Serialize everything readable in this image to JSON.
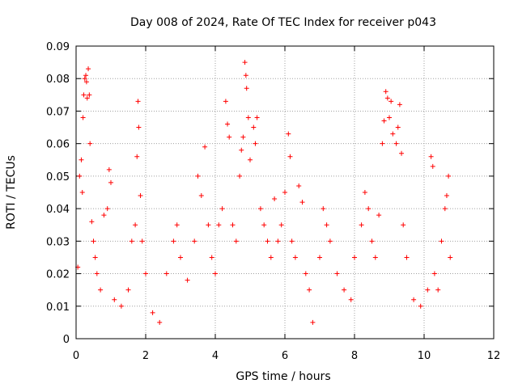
{
  "chart_data": {
    "type": "scatter",
    "title": "Day 008 of 2024, Rate Of TEC Index for receiver p043",
    "xlabel": "GPS time / hours",
    "ylabel": "ROTI / TECUs",
    "xlim": [
      0,
      12
    ],
    "ylim": [
      0,
      0.09
    ],
    "x_ticks": [
      "0",
      "2",
      "4",
      "6",
      "8",
      "10",
      "12"
    ],
    "y_ticks": [
      "0",
      "0.01",
      "0.02",
      "0.03",
      "0.04",
      "0.05",
      "0.06",
      "0.07",
      "0.08",
      "0.09"
    ],
    "grid": true,
    "marker": "+",
    "color": "#ff0000",
    "series": [
      {
        "name": "ROTI",
        "points": [
          [
            0.05,
            0.022
          ],
          [
            0.1,
            0.05
          ],
          [
            0.15,
            0.055
          ],
          [
            0.18,
            0.045
          ],
          [
            0.2,
            0.068
          ],
          [
            0.22,
            0.075
          ],
          [
            0.25,
            0.08
          ],
          [
            0.28,
            0.081
          ],
          [
            0.3,
            0.079
          ],
          [
            0.32,
            0.074
          ],
          [
            0.35,
            0.083
          ],
          [
            0.38,
            0.075
          ],
          [
            0.4,
            0.06
          ],
          [
            0.45,
            0.036
          ],
          [
            0.5,
            0.03
          ],
          [
            0.55,
            0.025
          ],
          [
            0.6,
            0.02
          ],
          [
            0.7,
            0.015
          ],
          [
            0.8,
            0.038
          ],
          [
            0.9,
            0.04
          ],
          [
            0.95,
            0.052
          ],
          [
            1.0,
            0.048
          ],
          [
            1.1,
            0.012
          ],
          [
            1.3,
            0.01
          ],
          [
            1.5,
            0.015
          ],
          [
            1.6,
            0.03
          ],
          [
            1.7,
            0.035
          ],
          [
            1.75,
            0.056
          ],
          [
            1.78,
            0.073
          ],
          [
            1.8,
            0.065
          ],
          [
            1.85,
            0.044
          ],
          [
            1.9,
            0.03
          ],
          [
            2.0,
            0.02
          ],
          [
            2.2,
            0.008
          ],
          [
            2.4,
            0.005
          ],
          [
            2.6,
            0.02
          ],
          [
            2.8,
            0.03
          ],
          [
            2.9,
            0.035
          ],
          [
            3.0,
            0.025
          ],
          [
            3.2,
            0.018
          ],
          [
            3.4,
            0.03
          ],
          [
            3.5,
            0.05
          ],
          [
            3.6,
            0.044
          ],
          [
            3.7,
            0.059
          ],
          [
            3.8,
            0.035
          ],
          [
            3.9,
            0.025
          ],
          [
            4.0,
            0.02
          ],
          [
            4.1,
            0.035
          ],
          [
            4.2,
            0.04
          ],
          [
            4.3,
            0.073
          ],
          [
            4.35,
            0.066
          ],
          [
            4.4,
            0.062
          ],
          [
            4.5,
            0.035
          ],
          [
            4.6,
            0.03
          ],
          [
            4.7,
            0.05
          ],
          [
            4.75,
            0.058
          ],
          [
            4.8,
            0.062
          ],
          [
            4.85,
            0.085
          ],
          [
            4.88,
            0.081
          ],
          [
            4.9,
            0.077
          ],
          [
            4.95,
            0.068
          ],
          [
            5.0,
            0.055
          ],
          [
            5.1,
            0.065
          ],
          [
            5.15,
            0.06
          ],
          [
            5.2,
            0.068
          ],
          [
            5.3,
            0.04
          ],
          [
            5.4,
            0.035
          ],
          [
            5.5,
            0.03
          ],
          [
            5.6,
            0.025
          ],
          [
            5.7,
            0.043
          ],
          [
            5.8,
            0.03
          ],
          [
            5.9,
            0.035
          ],
          [
            6.0,
            0.045
          ],
          [
            6.1,
            0.063
          ],
          [
            6.15,
            0.056
          ],
          [
            6.2,
            0.03
          ],
          [
            6.3,
            0.025
          ],
          [
            6.4,
            0.047
          ],
          [
            6.5,
            0.042
          ],
          [
            6.6,
            0.02
          ],
          [
            6.7,
            0.015
          ],
          [
            6.8,
            0.005
          ],
          [
            7.0,
            0.025
          ],
          [
            7.1,
            0.04
          ],
          [
            7.2,
            0.035
          ],
          [
            7.3,
            0.03
          ],
          [
            7.5,
            0.02
          ],
          [
            7.7,
            0.015
          ],
          [
            7.9,
            0.012
          ],
          [
            8.0,
            0.025
          ],
          [
            8.2,
            0.035
          ],
          [
            8.3,
            0.045
          ],
          [
            8.4,
            0.04
          ],
          [
            8.5,
            0.03
          ],
          [
            8.6,
            0.025
          ],
          [
            8.7,
            0.038
          ],
          [
            8.8,
            0.06
          ],
          [
            8.85,
            0.067
          ],
          [
            8.9,
            0.076
          ],
          [
            8.95,
            0.074
          ],
          [
            9.0,
            0.068
          ],
          [
            9.05,
            0.073
          ],
          [
            9.1,
            0.063
          ],
          [
            9.2,
            0.06
          ],
          [
            9.25,
            0.065
          ],
          [
            9.3,
            0.072
          ],
          [
            9.35,
            0.057
          ],
          [
            9.4,
            0.035
          ],
          [
            9.5,
            0.025
          ],
          [
            9.7,
            0.012
          ],
          [
            9.9,
            0.01
          ],
          [
            10.1,
            0.015
          ],
          [
            10.2,
            0.056
          ],
          [
            10.25,
            0.053
          ],
          [
            10.3,
            0.02
          ],
          [
            10.4,
            0.015
          ],
          [
            10.5,
            0.03
          ],
          [
            10.6,
            0.04
          ],
          [
            10.65,
            0.044
          ],
          [
            10.7,
            0.05
          ],
          [
            10.75,
            0.025
          ]
        ]
      }
    ]
  }
}
